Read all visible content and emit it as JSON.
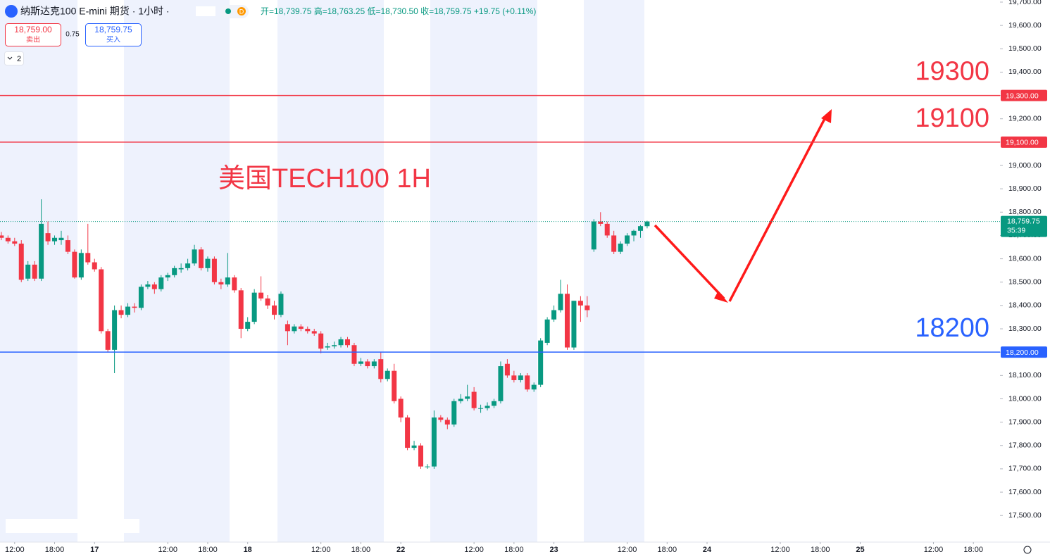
{
  "chart_data": {
    "type": "candlestick",
    "title": "纳斯达克100 E-mini 期货 · 1小时 ·",
    "badge": "D",
    "ohlc_line": "开=18,739.75 高=18,763.25 低=18,730.50 收=18,759.75 +19.75 (+0.11%)",
    "sell_price": "18,759.00",
    "sell_label": "卖出",
    "spread": "0.75",
    "buy_price": "18,759.75",
    "buy_label": "买入",
    "indicator_count": "2",
    "annotation": "美国TECH100 1H",
    "up_color": "#089981",
    "down_color": "#f23645",
    "ohlc": [
      [
        18700,
        18715,
        18680,
        18690
      ],
      [
        18690,
        18700,
        18665,
        18675
      ],
      [
        18675,
        18690,
        18655,
        18665
      ],
      [
        18665,
        18680,
        18500,
        18510
      ],
      [
        18515,
        18590,
        18505,
        18575
      ],
      [
        18575,
        18590,
        18505,
        18515
      ],
      [
        18515,
        18855,
        18505,
        18750
      ],
      [
        18710,
        18760,
        18660,
        18675
      ],
      [
        18675,
        18700,
        18660,
        18690
      ],
      [
        18680,
        18720,
        18660,
        18690
      ],
      [
        18680,
        18700,
        18620,
        18630
      ],
      [
        18630,
        18640,
        18515,
        18520
      ],
      [
        18520,
        18640,
        18510,
        18625
      ],
      [
        18625,
        18750,
        18575,
        18585
      ],
      [
        18585,
        18600,
        18545,
        18555
      ],
      [
        18555,
        18565,
        18280,
        18290
      ],
      [
        18290,
        18300,
        18200,
        18210
      ],
      [
        18210,
        18400,
        18110,
        18380
      ],
      [
        18380,
        18400,
        18345,
        18360
      ],
      [
        18360,
        18410,
        18350,
        18395
      ],
      [
        18395,
        18410,
        18370,
        18390
      ],
      [
        18390,
        18490,
        18380,
        18480
      ],
      [
        18480,
        18505,
        18470,
        18490
      ],
      [
        18490,
        18500,
        18450,
        18470
      ],
      [
        18470,
        18530,
        18460,
        18520
      ],
      [
        18520,
        18540,
        18505,
        18530
      ],
      [
        18530,
        18570,
        18520,
        18560
      ],
      [
        18555,
        18580,
        18540,
        18560
      ],
      [
        18560,
        18600,
        18550,
        18580
      ],
      [
        18580,
        18660,
        18570,
        18640
      ],
      [
        18640,
        18650,
        18550,
        18560
      ],
      [
        18560,
        18610,
        18545,
        18600
      ],
      [
        18600,
        18610,
        18490,
        18500
      ],
      [
        18500,
        18515,
        18470,
        18490
      ],
      [
        18490,
        18625,
        18480,
        18520
      ],
      [
        18520,
        18530,
        18455,
        18465
      ],
      [
        18465,
        18475,
        18260,
        18300
      ],
      [
        18300,
        18350,
        18290,
        18330
      ],
      [
        18330,
        18470,
        18320,
        18455
      ],
      [
        18455,
        18525,
        18420,
        18430
      ],
      [
        18430,
        18445,
        18385,
        18400
      ],
      [
        18400,
        18420,
        18340,
        18360
      ],
      [
        18360,
        18460,
        18350,
        18450
      ],
      [
        18320,
        18335,
        18230,
        18290
      ],
      [
        18290,
        18320,
        18280,
        18310
      ],
      [
        18310,
        18320,
        18290,
        18300
      ],
      [
        18300,
        18310,
        18280,
        18290
      ],
      [
        18290,
        18300,
        18270,
        18280
      ],
      [
        18280,
        18290,
        18195,
        18215
      ],
      [
        18220,
        18240,
        18210,
        18225
      ],
      [
        18225,
        18245,
        18215,
        18230
      ],
      [
        18230,
        18265,
        18220,
        18255
      ],
      [
        18255,
        18265,
        18220,
        18230
      ],
      [
        18230,
        18240,
        18140,
        18150
      ],
      [
        18150,
        18175,
        18140,
        18160
      ],
      [
        18160,
        18170,
        18130,
        18140
      ],
      [
        18140,
        18170,
        18130,
        18160
      ],
      [
        18170,
        18200,
        18070,
        18085
      ],
      [
        18085,
        18130,
        18075,
        18120
      ],
      [
        18120,
        18150,
        17980,
        17990
      ],
      [
        18000,
        18010,
        17900,
        17920
      ],
      [
        17920,
        17930,
        17780,
        17790
      ],
      [
        17790,
        17820,
        17780,
        17800
      ],
      [
        17800,
        17810,
        17700,
        17710
      ],
      [
        17710,
        17720,
        17700,
        17710
      ],
      [
        17710,
        17950,
        17700,
        17920
      ],
      [
        17920,
        17930,
        17900,
        17910
      ],
      [
        17910,
        17920,
        17870,
        17890
      ],
      [
        17890,
        18000,
        17880,
        17990
      ],
      [
        17990,
        18020,
        17980,
        18000
      ],
      [
        18000,
        18060,
        17990,
        18010
      ],
      [
        18030,
        18050,
        17950,
        17960
      ],
      [
        17960,
        17975,
        17940,
        17960
      ],
      [
        17960,
        17985,
        17950,
        17970
      ],
      [
        17970,
        18000,
        17960,
        17990
      ],
      [
        17990,
        18160,
        17980,
        18140
      ],
      [
        18150,
        18170,
        18090,
        18100
      ],
      [
        18100,
        18120,
        18070,
        18080
      ],
      [
        18080,
        18110,
        18070,
        18100
      ],
      [
        18100,
        18110,
        18030,
        18040
      ],
      [
        18040,
        18070,
        18030,
        18060
      ],
      [
        18060,
        18260,
        18050,
        18250
      ],
      [
        18240,
        18350,
        18230,
        18340
      ],
      [
        18340,
        18400,
        18330,
        18380
      ],
      [
        18380,
        18510,
        18370,
        18450
      ],
      [
        18450,
        18490,
        18210,
        18220
      ],
      [
        18220,
        18420,
        18210,
        18420
      ],
      [
        18420,
        18440,
        18330,
        18400
      ],
      [
        18400,
        18440,
        18350,
        18380
      ],
      [
        18640,
        18770,
        18630,
        18760
      ],
      [
        18760,
        18800,
        18740,
        18750
      ],
      [
        18750,
        18760,
        18690,
        18700
      ],
      [
        18700,
        18720,
        18620,
        18630
      ],
      [
        18630,
        18675,
        18620,
        18665
      ],
      [
        18665,
        18710,
        18655,
        18700
      ],
      [
        18700,
        18725,
        18675,
        18720
      ],
      [
        18720,
        18745,
        18690,
        18740
      ],
      [
        18739.75,
        18763.25,
        18730.5,
        18759.75
      ]
    ],
    "last_price": 18759.75,
    "last_price_label": "18,759.75",
    "countdown": "35:39",
    "levels": [
      {
        "value": 19300,
        "label": "19,300.00",
        "text": "19300",
        "color": "#f23645"
      },
      {
        "value": 19100,
        "label": "19,100.00",
        "text": "19100",
        "color": "#f23645"
      },
      {
        "value": 18200,
        "label": "18,200.00",
        "text": "18200",
        "color": "#2962ff"
      }
    ],
    "xlim": [
      -0.2,
      150
    ],
    "xticks": [
      {
        "value": 2,
        "label": "12:00"
      },
      {
        "value": 8,
        "label": "18:00"
      },
      {
        "value": 14,
        "label": "17"
      },
      {
        "value": 25,
        "label": "12:00"
      },
      {
        "value": 31,
        "label": "18:00"
      },
      {
        "value": 37,
        "label": "18"
      },
      {
        "value": 48,
        "label": "12:00"
      },
      {
        "value": 54,
        "label": "18:00"
      },
      {
        "value": 60,
        "label": "22"
      },
      {
        "value": 71,
        "label": "12:00"
      },
      {
        "value": 77,
        "label": "18:00"
      },
      {
        "value": 83,
        "label": "23"
      },
      {
        "value": 94,
        "label": "12:00"
      },
      {
        "value": 100,
        "label": "18:00"
      },
      {
        "value": 106,
        "label": "24"
      },
      {
        "value": 117,
        "label": "12:00"
      },
      {
        "value": 123,
        "label": "18:00"
      },
      {
        "value": 129,
        "label": "25"
      },
      {
        "value": 140,
        "label": "12:00"
      },
      {
        "value": 146,
        "label": "18:00"
      }
    ],
    "ylim": [
      17386,
      19709
    ],
    "yticks": [
      {
        "value": 19700,
        "label": "19,700.00"
      },
      {
        "value": 19600,
        "label": "19,600.00"
      },
      {
        "value": 19500,
        "label": "19,500.00"
      },
      {
        "value": 19400,
        "label": "19,400.00"
      },
      {
        "value": 19300,
        "label": "19,300.00"
      },
      {
        "value": 19200,
        "label": "19,200.00"
      },
      {
        "value": 19100,
        "label": "19,100.00"
      },
      {
        "value": 19000,
        "label": "19,000.00"
      },
      {
        "value": 18900,
        "label": "18,900.00"
      },
      {
        "value": 18800,
        "label": "18,800.00"
      },
      {
        "value": 18700,
        "label": "18,700.00"
      },
      {
        "value": 18600,
        "label": "18,600.00"
      },
      {
        "value": 18500,
        "label": "18,500.00"
      },
      {
        "value": 18400,
        "label": "18,400.00"
      },
      {
        "value": 18300,
        "label": "18,300.00"
      },
      {
        "value": 18200,
        "label": "18,200.00"
      },
      {
        "value": 18100,
        "label": "18,100.00"
      },
      {
        "value": 18000,
        "label": "18,000.00"
      },
      {
        "value": 17900,
        "label": "17,900.00"
      },
      {
        "value": 17800,
        "label": "17,800.00"
      },
      {
        "value": 17700,
        "label": "17,700.00"
      },
      {
        "value": 17600,
        "label": "17,600.00"
      },
      {
        "value": 17500,
        "label": "17,500.00"
      }
    ]
  }
}
